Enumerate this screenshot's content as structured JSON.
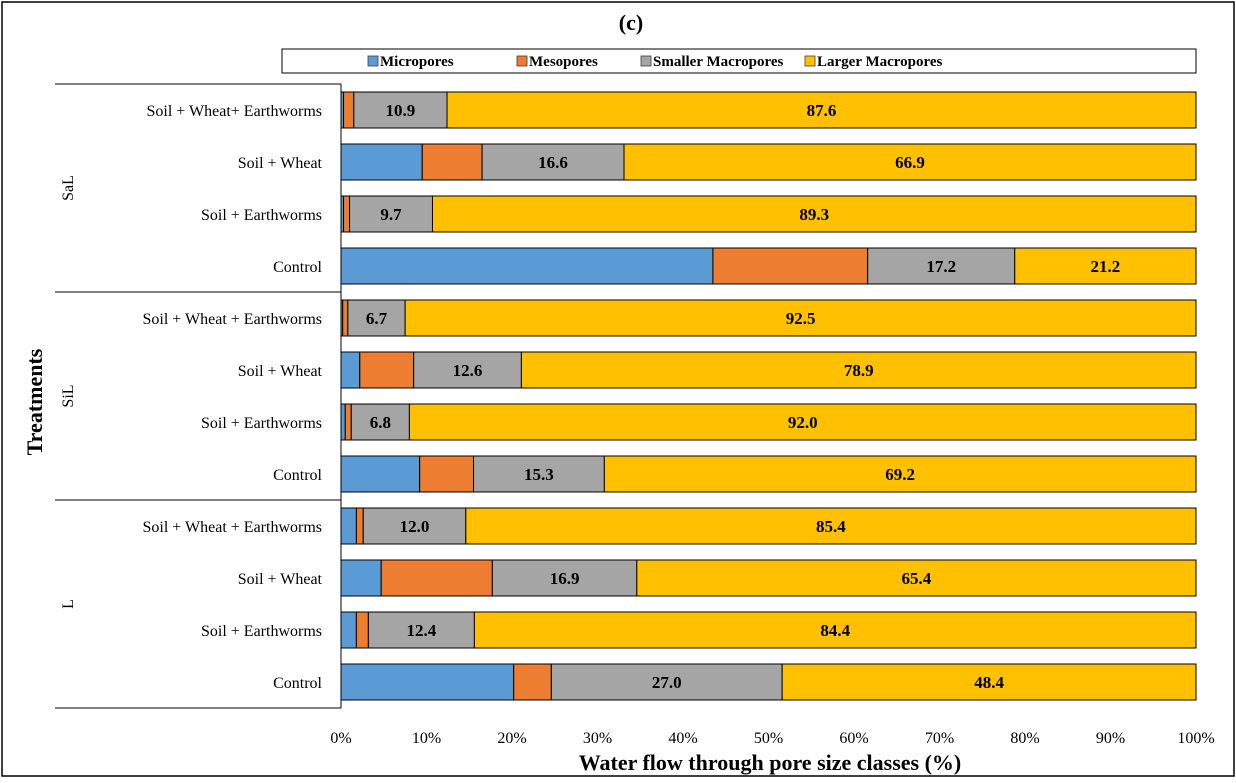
{
  "chart_data": {
    "type": "bar",
    "orientation": "horizontal",
    "stacked": true,
    "title": "(c)",
    "xlabel": "Water flow through pore size classes (%)",
    "ylabel": "Treatments",
    "xlim": [
      0,
      100
    ],
    "x_ticks": [
      "0%",
      "10%",
      "20%",
      "30%",
      "40%",
      "50%",
      "60%",
      "70%",
      "80%",
      "90%",
      "100%"
    ],
    "legend_position": "top",
    "series": [
      {
        "name": "Micropores",
        "color": "#5b9bd5"
      },
      {
        "name": "Mesopores",
        "color": "#ed7d31"
      },
      {
        "name": "Smaller Macropores",
        "color": "#a5a5a5"
      },
      {
        "name": "Larger Macropores",
        "color": "#ffc000"
      }
    ],
    "groups": [
      {
        "name": "SaL",
        "bars": [
          {
            "label": "Soil + Wheat+ Earthworms",
            "values": [
              0.3,
              1.2,
              10.9,
              87.6
            ],
            "shown_labels": [
              null,
              null,
              "10.9",
              "87.6"
            ]
          },
          {
            "label": "Soil + Wheat",
            "values": [
              9.5,
              7.0,
              16.6,
              66.9
            ],
            "shown_labels": [
              null,
              null,
              "16.6",
              "66.9"
            ]
          },
          {
            "label": "Soil  + Earthworms",
            "values": [
              0.3,
              0.7,
              9.7,
              89.3
            ],
            "shown_labels": [
              null,
              null,
              "9.7",
              "89.3"
            ]
          },
          {
            "label": "Control",
            "values": [
              43.5,
              18.1,
              17.2,
              21.2
            ],
            "shown_labels": [
              null,
              null,
              "17.2",
              "21.2"
            ]
          }
        ]
      },
      {
        "name": "SiL",
        "bars": [
          {
            "label": "Soil + Wheat + Earthworms",
            "values": [
              0.2,
              0.6,
              6.7,
              92.5
            ],
            "shown_labels": [
              null,
              null,
              "6.7",
              "92.5"
            ]
          },
          {
            "label": "Soil + Wheat",
            "values": [
              2.2,
              6.3,
              12.6,
              78.9
            ],
            "shown_labels": [
              null,
              null,
              "12.6",
              "78.9"
            ]
          },
          {
            "label": "Soil  + Earthworms",
            "values": [
              0.5,
              0.7,
              6.8,
              92.0
            ],
            "shown_labels": [
              null,
              null,
              "6.8",
              "92.0"
            ]
          },
          {
            "label": "Control",
            "values": [
              9.2,
              6.3,
              15.3,
              69.2
            ],
            "shown_labels": [
              null,
              null,
              "15.3",
              "69.2"
            ]
          }
        ]
      },
      {
        "name": "L",
        "bars": [
          {
            "label": "Soil + Wheat + Earthworms",
            "values": [
              1.8,
              0.8,
              12.0,
              85.4
            ],
            "shown_labels": [
              null,
              null,
              "12.0",
              "85.4"
            ]
          },
          {
            "label": "Soil + Wheat",
            "values": [
              4.7,
              13.0,
              16.9,
              65.4
            ],
            "shown_labels": [
              null,
              null,
              "16.9",
              "65.4"
            ]
          },
          {
            "label": "Soil  + Earthworms",
            "values": [
              1.8,
              1.4,
              12.4,
              84.4
            ],
            "shown_labels": [
              null,
              null,
              "12.4",
              "84.4"
            ]
          },
          {
            "label": "Control",
            "values": [
              20.2,
              4.4,
              27.0,
              48.4
            ],
            "shown_labels": [
              null,
              null,
              "27.0",
              "48.4"
            ]
          }
        ]
      }
    ]
  }
}
